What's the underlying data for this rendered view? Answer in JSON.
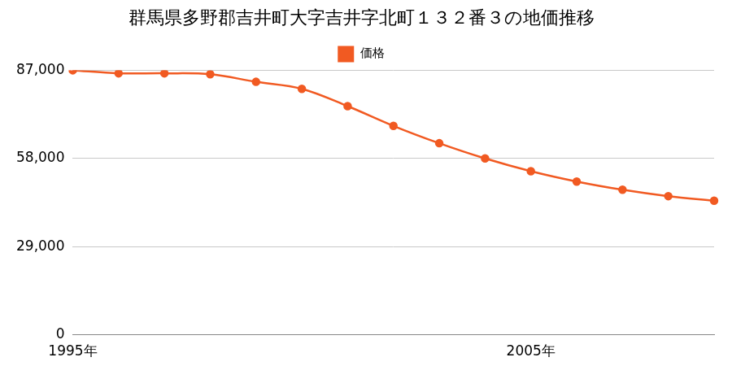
{
  "chart_data": {
    "type": "line",
    "title": "群馬県多野郡吉井町大字吉井字北町１３２番３の地価推移",
    "categories": [
      "1995年",
      null,
      null,
      null,
      null,
      null,
      null,
      null,
      null,
      null,
      "2005年",
      null,
      null,
      null,
      null
    ],
    "series": [
      {
        "name": "価格",
        "color": "#f15a22",
        "marker": "circle",
        "values": [
          87000,
          86000,
          86000,
          85700,
          83200,
          80900,
          75200,
          68700,
          63000,
          58000,
          53800,
          50400,
          47700,
          45600,
          44100
        ]
      }
    ],
    "ylim": [
      0,
      87000
    ],
    "yticks": [
      0,
      {
        "value": 29000,
        "label": "29,000"
      },
      {
        "value": 58000,
        "label": "58,000"
      },
      {
        "value": 87000,
        "label": "87,000"
      }
    ],
    "grid": true,
    "legend": "top"
  }
}
